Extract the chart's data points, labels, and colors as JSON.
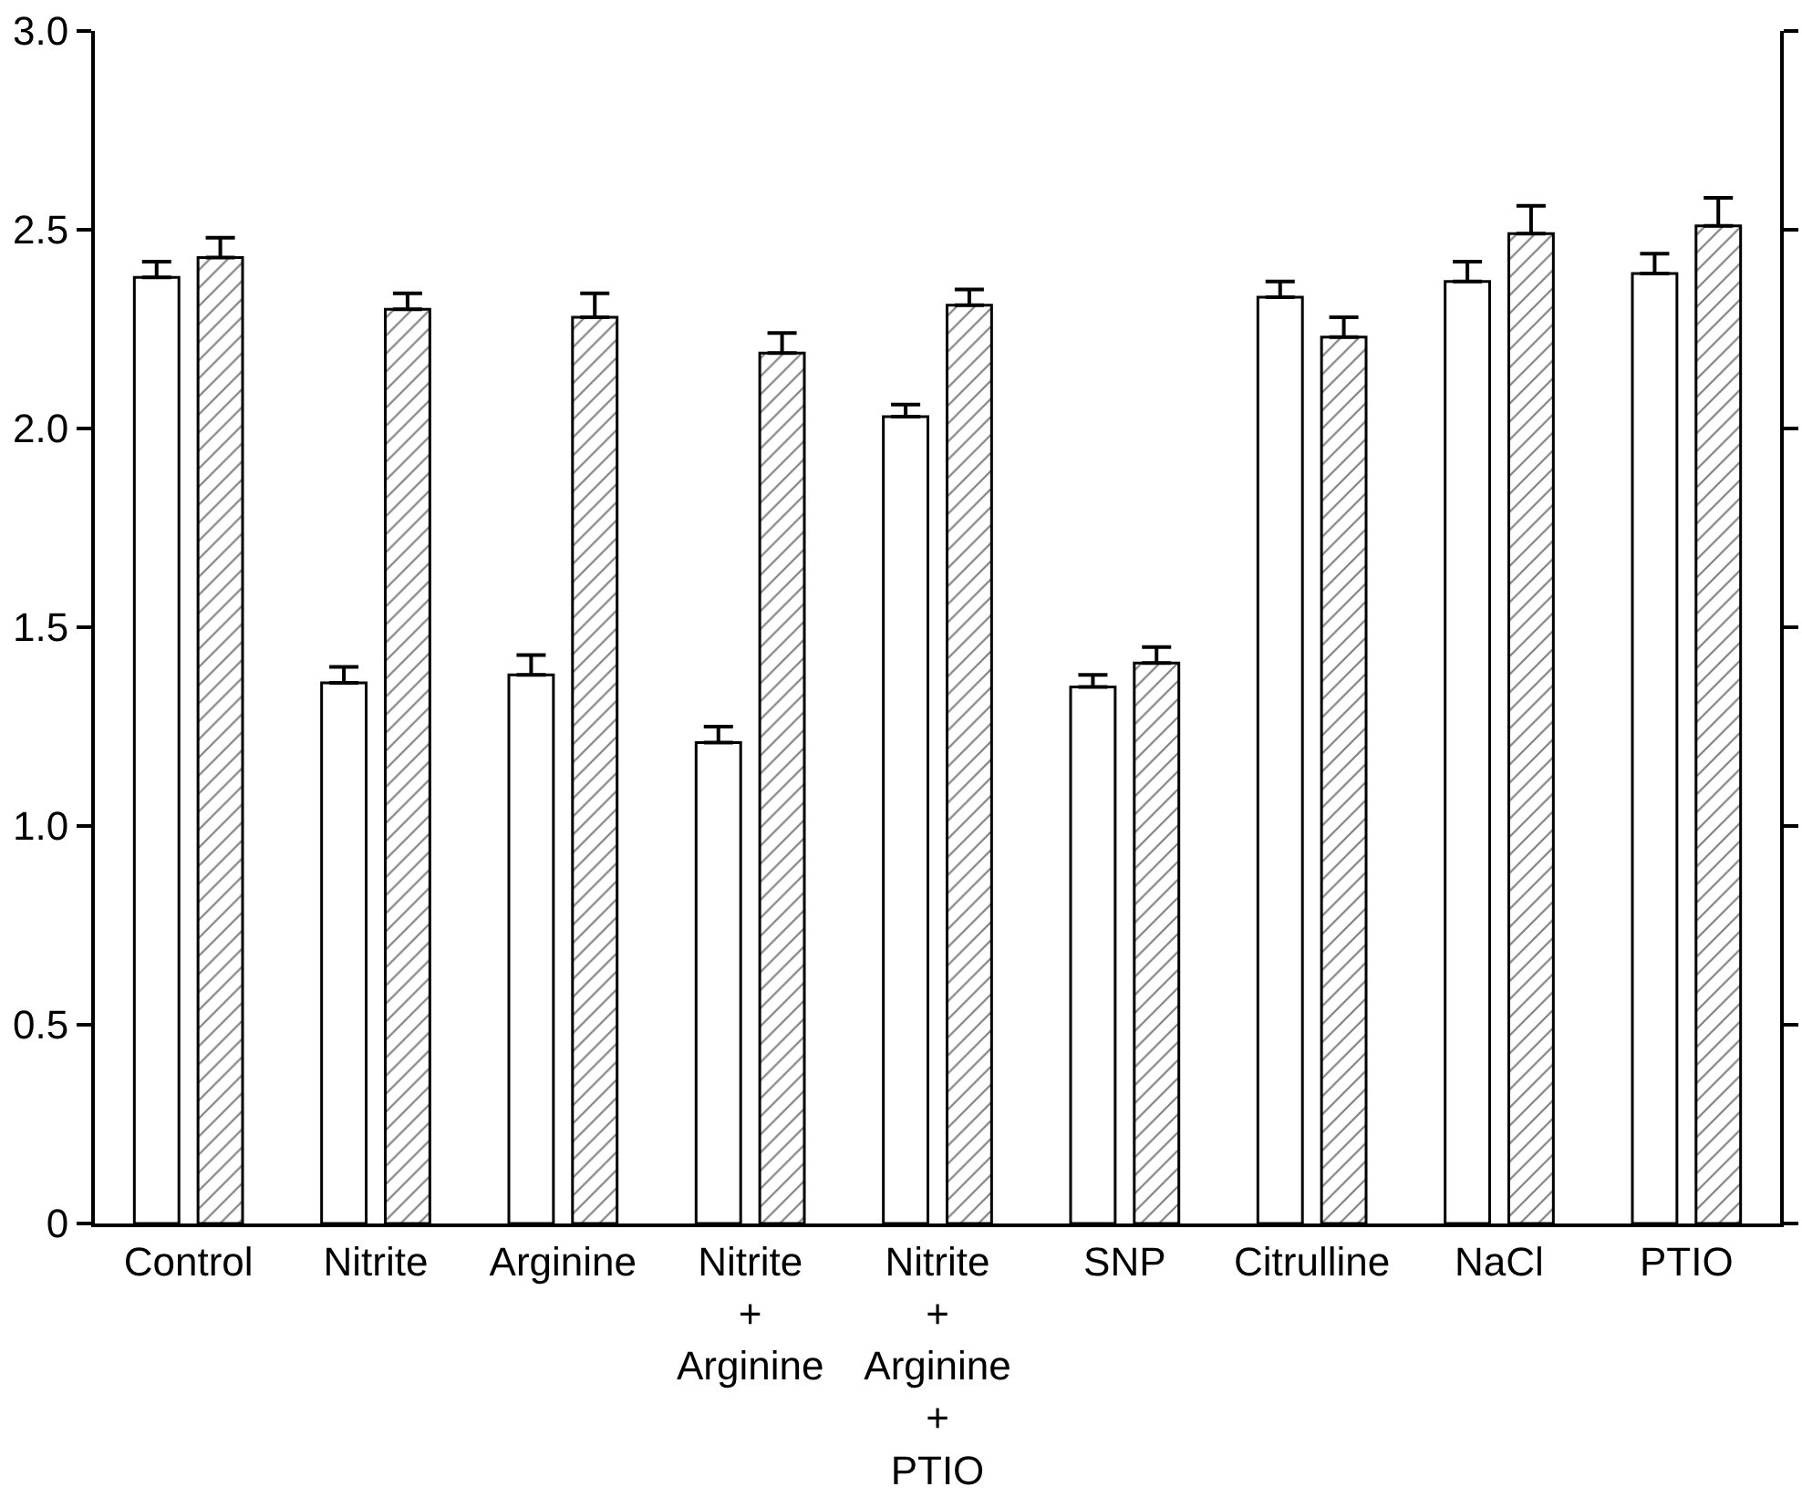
{
  "chart_data": {
    "type": "bar",
    "categories": [
      "Control",
      "Nitrite",
      "Arginine",
      "Nitrite\n+\nArginine",
      "Nitrite\n+\nArginine\n+\nPTIO",
      "SNP",
      "Citrulline",
      "NaCl",
      "PTIO"
    ],
    "series": [
      {
        "color": "#ffffff",
        "values": [
          2.38,
          1.36,
          1.38,
          1.21,
          2.03,
          1.35,
          2.33,
          2.37,
          2.39
        ],
        "errors": [
          [
            2.38,
            2.42
          ],
          [
            1.36,
            1.4
          ],
          [
            1.38,
            1.43
          ],
          [
            1.21,
            1.25
          ],
          [
            2.03,
            2.06
          ],
          [
            1.35,
            1.38
          ],
          [
            2.33,
            2.37
          ],
          [
            2.37,
            2.42
          ],
          [
            2.39,
            2.44
          ]
        ]
      },
      {
        "color": "#000000",
        "values": [
          2.43,
          2.3,
          2.28,
          2.19,
          2.31,
          1.41,
          2.23,
          2.49,
          2.51
        ],
        "errors": [
          [
            2.43,
            2.48
          ],
          [
            2.3,
            2.34
          ],
          [
            2.28,
            2.34
          ],
          [
            2.19,
            2.24
          ],
          [
            2.31,
            2.35
          ],
          [
            1.41,
            1.45
          ],
          [
            2.23,
            2.28
          ],
          [
            2.49,
            2.56
          ],
          [
            2.51,
            2.58
          ]
        ]
      }
    ],
    "ylim": [
      0,
      3.0
    ],
    "yticks": [
      0,
      {
        "value": 0.5,
        "label": "0.5"
      },
      {
        "value": 1.0,
        "label": "1.0"
      },
      {
        "value": 1.5,
        "label": "1.5"
      },
      {
        "value": 2.0,
        "label": "2.0"
      },
      {
        "value": 2.5,
        "label": "2.5"
      },
      {
        "value": 3.0,
        "label": "3.0"
      }
    ],
    "ylabel": null
  }
}
